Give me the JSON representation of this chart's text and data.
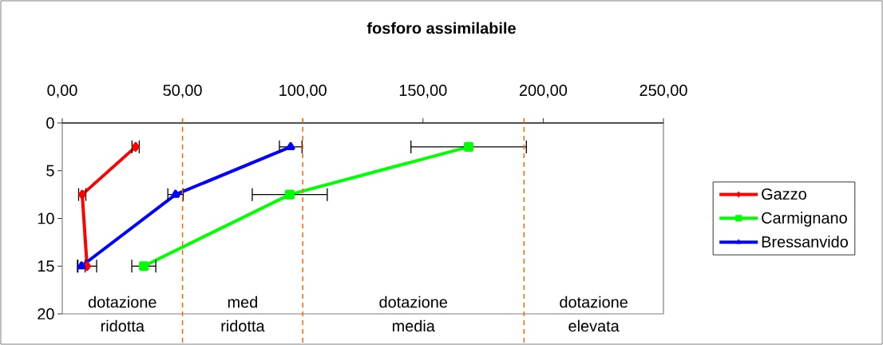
{
  "chart_data": {
    "type": "line",
    "title": "fosforo assimilabile",
    "xlim": [
      0,
      250
    ],
    "ylim": [
      20,
      0
    ],
    "xticks": [
      {
        "value": 0,
        "label": "0,00"
      },
      {
        "value": 50,
        "label": "50,00"
      },
      {
        "value": 100,
        "label": "100,00"
      },
      {
        "value": 150,
        "label": "150,00"
      },
      {
        "value": 200,
        "label": "200,00"
      },
      {
        "value": 250,
        "label": "250,00"
      }
    ],
    "yticks": [
      0,
      5,
      10,
      15,
      20
    ],
    "series": [
      {
        "name": "Gazzo",
        "color": "#ff0000",
        "marker": "diamond",
        "x": [
          30.5,
          8.3,
          10.3
        ],
        "values": [
          2.5,
          7.5,
          15
        ],
        "xerrors": [
          1.5,
          1.5,
          4
        ]
      },
      {
        "name": "Carmignano",
        "color": "#00ff00",
        "marker": "square",
        "x": [
          169,
          94.6,
          33.9
        ],
        "values": [
          2.5,
          7.5,
          15
        ],
        "xerrors": [
          24,
          15.6,
          5
        ]
      },
      {
        "name": "Bressanvido",
        "color": "#0000ff",
        "marker": "triangle",
        "x": [
          95,
          47.1,
          8
        ],
        "values": [
          2.5,
          7.5,
          15
        ],
        "xerrors": [
          4.7,
          3.2,
          1.5
        ]
      }
    ],
    "ref_lines": [
      {
        "axis": "x",
        "value": 50,
        "color": "#ff6600",
        "line_style": "dashed"
      },
      {
        "axis": "x",
        "value": 100,
        "color": "#ff6600",
        "line_style": "dashed"
      },
      {
        "axis": "x",
        "value": 192,
        "color": "#ff6600",
        "line_style": "dashed"
      }
    ],
    "annotations": [
      "dotazione ridotta",
      "med ridotta",
      "dotazione media",
      "dotazione elevata"
    ],
    "legend": "right",
    "grid": false,
    "line_style": "solid"
  }
}
